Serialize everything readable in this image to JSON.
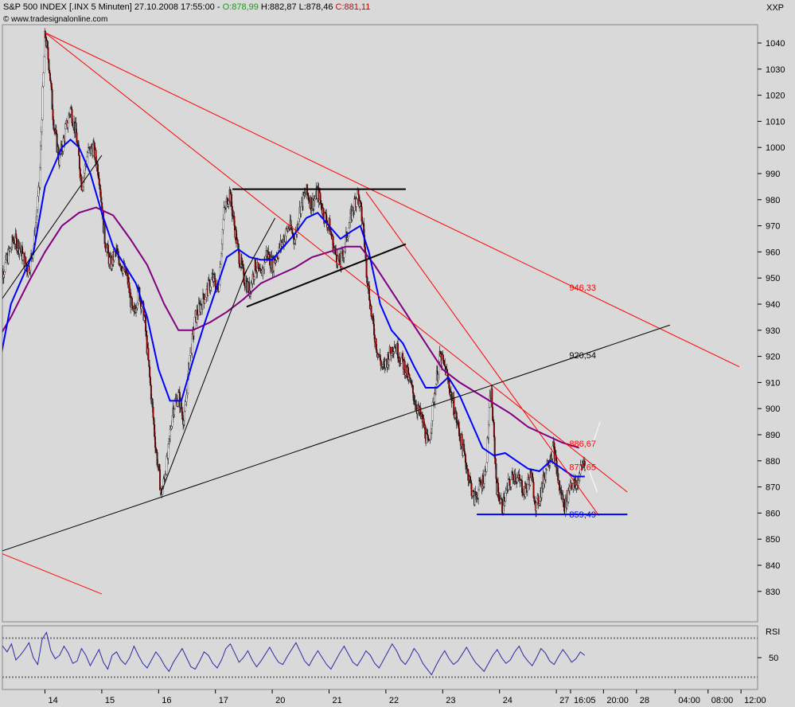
{
  "header": {
    "symbol": "S&P 500 INDEX [.INX  5 Minuten] 27.10.2008 17:55:00 - ",
    "open": "O:878,99",
    "high_low": " H:882,87 L:878,46 ",
    "close": "C:881,11",
    "source": "© www.tradesignalonline.com",
    "corner": "XXP"
  },
  "colors": {
    "background": "#d9d9d9",
    "candle_up": "#ffffff",
    "candle_down": "#8b0000",
    "ma_fast": "#0000ff",
    "ma_slow": "#800080",
    "trendline_red": "#ff0000",
    "trendline_black": "#000000",
    "support_blue": "#0000ff",
    "rsi": "#2a2aa8"
  },
  "chart_data": [
    {
      "type": "line",
      "panel": "price",
      "y_ticks": [
        1040,
        1030,
        1020,
        1010,
        1000,
        990,
        980,
        970,
        960,
        950,
        940,
        930,
        920,
        910,
        900,
        890,
        880,
        870,
        860,
        850,
        840,
        830
      ],
      "ylim": [
        827,
        1047
      ],
      "x_ticks": [
        "14",
        "15",
        "16",
        "17",
        "20",
        "21",
        "22",
        "23",
        "24",
        "27",
        "16:05",
        "20:00",
        "28",
        "04:00",
        "08:00",
        "12:00"
      ],
      "x_tick_pos": [
        0,
        1,
        2,
        3,
        4,
        5,
        6,
        7,
        8,
        9,
        9.25,
        9.83,
        10.41,
        11.09,
        11.67,
        12.25
      ],
      "xlim": [
        -0.85,
        12.6
      ],
      "price_path": [
        [
          -0.82,
          948
        ],
        [
          -0.7,
          955
        ],
        [
          -0.55,
          965
        ],
        [
          -0.45,
          962
        ],
        [
          -0.3,
          953
        ],
        [
          -0.2,
          962
        ],
        [
          -0.1,
          985
        ],
        [
          0.0,
          1044
        ],
        [
          0.08,
          1030
        ],
        [
          0.15,
          1010
        ],
        [
          0.25,
          995
        ],
        [
          0.35,
          1005
        ],
        [
          0.45,
          1015
        ],
        [
          0.55,
          1005
        ],
        [
          0.65,
          985
        ],
        [
          0.75,
          998
        ],
        [
          0.85,
          1000
        ],
        [
          0.95,
          990
        ],
        [
          1.05,
          965
        ],
        [
          1.15,
          955
        ],
        [
          1.25,
          960
        ],
        [
          1.35,
          955
        ],
        [
          1.45,
          950
        ],
        [
          1.55,
          935
        ],
        [
          1.65,
          945
        ],
        [
          1.75,
          935
        ],
        [
          1.85,
          910
        ],
        [
          1.95,
          885
        ],
        [
          2.05,
          867
        ],
        [
          2.15,
          880
        ],
        [
          2.25,
          900
        ],
        [
          2.35,
          905
        ],
        [
          2.45,
          895
        ],
        [
          2.55,
          920
        ],
        [
          2.65,
          935
        ],
        [
          2.75,
          940
        ],
        [
          2.85,
          945
        ],
        [
          2.95,
          950
        ],
        [
          3.05,
          945
        ],
        [
          3.15,
          975
        ],
        [
          3.25,
          983
        ],
        [
          3.3,
          975
        ],
        [
          3.4,
          960
        ],
        [
          3.5,
          950
        ],
        [
          3.6,
          945
        ],
        [
          3.7,
          955
        ],
        [
          3.8,
          950
        ],
        [
          3.9,
          960
        ],
        [
          4.0,
          955
        ],
        [
          4.1,
          960
        ],
        [
          4.2,
          965
        ],
        [
          4.3,
          970
        ],
        [
          4.4,
          965
        ],
        [
          4.5,
          978
        ],
        [
          4.6,
          983
        ],
        [
          4.7,
          978
        ],
        [
          4.8,
          983
        ],
        [
          4.9,
          975
        ],
        [
          5.0,
          970
        ],
        [
          5.1,
          960
        ],
        [
          5.2,
          955
        ],
        [
          5.3,
          965
        ],
        [
          5.4,
          975
        ],
        [
          5.5,
          983
        ],
        [
          5.6,
          970
        ],
        [
          5.65,
          955
        ],
        [
          5.75,
          935
        ],
        [
          5.85,
          922
        ],
        [
          5.95,
          915
        ],
        [
          6.05,
          920
        ],
        [
          6.15,
          925
        ],
        [
          6.25,
          920
        ],
        [
          6.35,
          915
        ],
        [
          6.45,
          908
        ],
        [
          6.55,
          900
        ],
        [
          6.65,
          895
        ],
        [
          6.75,
          885
        ],
        [
          6.85,
          905
        ],
        [
          6.95,
          920
        ],
        [
          7.05,
          915
        ],
        [
          7.15,
          905
        ],
        [
          7.25,
          895
        ],
        [
          7.35,
          885
        ],
        [
          7.45,
          875
        ],
        [
          7.55,
          865
        ],
        [
          7.65,
          870
        ],
        [
          7.75,
          875
        ],
        [
          7.85,
          908
        ],
        [
          7.95,
          870
        ],
        [
          8.05,
          862
        ],
        [
          8.15,
          870
        ],
        [
          8.25,
          875
        ],
        [
          8.35,
          872
        ],
        [
          8.45,
          868
        ],
        [
          8.55,
          875
        ],
        [
          8.65,
          862
        ],
        [
          8.75,
          870
        ],
        [
          8.85,
          880
        ],
        [
          8.95,
          885
        ],
        [
          9.05,
          870
        ],
        [
          9.15,
          862
        ],
        [
          9.25,
          872
        ],
        [
          9.35,
          870
        ],
        [
          9.45,
          878
        ],
        [
          9.5,
          881
        ]
      ],
      "ma_fast_path": [
        [
          -0.82,
          915
        ],
        [
          -0.6,
          940
        ],
        [
          -0.4,
          950
        ],
        [
          -0.2,
          960
        ],
        [
          0.0,
          985
        ],
        [
          0.3,
          1000
        ],
        [
          0.45,
          1003
        ],
        [
          0.6,
          1000
        ],
        [
          0.8,
          990
        ],
        [
          1.0,
          975
        ],
        [
          1.2,
          962
        ],
        [
          1.4,
          955
        ],
        [
          1.6,
          948
        ],
        [
          1.8,
          935
        ],
        [
          2.0,
          915
        ],
        [
          2.2,
          903
        ],
        [
          2.4,
          903
        ],
        [
          2.6,
          918
        ],
        [
          2.8,
          932
        ],
        [
          3.0,
          945
        ],
        [
          3.2,
          958
        ],
        [
          3.4,
          961
        ],
        [
          3.6,
          958
        ],
        [
          3.8,
          957
        ],
        [
          4.0,
          957
        ],
        [
          4.2,
          962
        ],
        [
          4.4,
          967
        ],
        [
          4.6,
          973
        ],
        [
          4.8,
          975
        ],
        [
          5.0,
          970
        ],
        [
          5.2,
          965
        ],
        [
          5.4,
          968
        ],
        [
          5.55,
          970
        ],
        [
          5.7,
          960
        ],
        [
          5.9,
          940
        ],
        [
          6.1,
          930
        ],
        [
          6.3,
          925
        ],
        [
          6.5,
          916
        ],
        [
          6.7,
          908
        ],
        [
          6.9,
          908
        ],
        [
          7.1,
          912
        ],
        [
          7.3,
          905
        ],
        [
          7.5,
          895
        ],
        [
          7.7,
          885
        ],
        [
          7.9,
          882
        ],
        [
          8.1,
          883
        ],
        [
          8.3,
          880
        ],
        [
          8.5,
          877
        ],
        [
          8.7,
          876
        ],
        [
          8.9,
          880
        ],
        [
          9.1,
          877
        ],
        [
          9.3,
          874
        ],
        [
          9.5,
          874
        ]
      ],
      "ma_slow_path": [
        [
          -0.82,
          927
        ],
        [
          -0.6,
          935
        ],
        [
          -0.3,
          948
        ],
        [
          0.0,
          960
        ],
        [
          0.3,
          970
        ],
        [
          0.6,
          975
        ],
        [
          0.9,
          977
        ],
        [
          1.2,
          974
        ],
        [
          1.5,
          965
        ],
        [
          1.8,
          955
        ],
        [
          2.1,
          940
        ],
        [
          2.35,
          930
        ],
        [
          2.6,
          930
        ],
        [
          2.9,
          933
        ],
        [
          3.2,
          937
        ],
        [
          3.5,
          942
        ],
        [
          3.8,
          948
        ],
        [
          4.1,
          951
        ],
        [
          4.4,
          954
        ],
        [
          4.7,
          958
        ],
        [
          5.0,
          960
        ],
        [
          5.3,
          962
        ],
        [
          5.55,
          962
        ],
        [
          5.8,
          955
        ],
        [
          6.1,
          945
        ],
        [
          6.4,
          935
        ],
        [
          6.7,
          925
        ],
        [
          7.0,
          915
        ],
        [
          7.3,
          910
        ],
        [
          7.6,
          906
        ],
        [
          7.9,
          902
        ],
        [
          8.2,
          898
        ],
        [
          8.5,
          893
        ],
        [
          8.8,
          890
        ],
        [
          9.1,
          887
        ],
        [
          9.4,
          885
        ]
      ],
      "lines": [
        {
          "color": "red",
          "x1": 0.0,
          "y1": 1044,
          "x2": 12.22,
          "y2": 916
        },
        {
          "color": "red",
          "x1": 0.0,
          "y1": 1044,
          "x2": 10.25,
          "y2": 868
        },
        {
          "color": "red",
          "x1": 5.65,
          "y1": 983,
          "x2": 9.75,
          "y2": 859
        },
        {
          "color": "red",
          "x1": -0.82,
          "y1": 845,
          "x2": 1.0,
          "y2": 829
        },
        {
          "color": "black",
          "x1": -0.82,
          "y1": 845,
          "x2": 11.0,
          "y2": 932
        },
        {
          "color": "black",
          "x1": -0.82,
          "y1": 940,
          "x2": 1.0,
          "y2": 997
        },
        {
          "color": "black",
          "x1": 2.03,
          "y1": 867,
          "x2": 3.55,
          "y2": 953
        },
        {
          "color": "black",
          "x1": 3.5,
          "y1": 951,
          "x2": 4.05,
          "y2": 973
        },
        {
          "color": "black",
          "x1": 3.3,
          "y1": 984,
          "x2": 6.35,
          "y2": 984,
          "bold": true
        },
        {
          "color": "black",
          "x1": 3.55,
          "y1": 939,
          "x2": 6.35,
          "y2": 963,
          "bold": true
        },
        {
          "color": "blue",
          "x1": 7.6,
          "y1": 859.49,
          "x2": 10.25,
          "y2": 859.49,
          "bold": true
        },
        {
          "color": "white",
          "x1": 9.65,
          "y1": 887,
          "x2": 9.77,
          "y2": 895
        },
        {
          "color": "white",
          "x1": 9.55,
          "y1": 878,
          "x2": 9.72,
          "y2": 868
        }
      ],
      "levels": [
        {
          "label": "946,33",
          "value": 946.33,
          "color": "red",
          "x": 9.2
        },
        {
          "label": "920,54",
          "value": 920.54,
          "color": "black",
          "x": 9.2
        },
        {
          "label": "886,67",
          "value": 886.67,
          "color": "red",
          "x": 9.2
        },
        {
          "label": "877,65",
          "value": 877.65,
          "color": "red",
          "x": 9.2
        },
        {
          "label": "859,49",
          "value": 859.49,
          "color": "blue",
          "x": 9.2
        }
      ]
    },
    {
      "type": "line",
      "panel": "rsi",
      "title": "RSI",
      "y_ticks": [
        50
      ],
      "ylim": [
        25,
        75
      ],
      "bands": [
        67,
        33
      ],
      "series": [
        {
          "values": [
            58,
            60,
            55,
            62,
            48,
            52,
            57,
            63,
            50,
            44,
            66,
            72,
            56,
            49,
            52,
            60,
            54,
            45,
            47,
            58,
            52,
            43,
            50,
            57,
            46,
            40,
            52,
            55,
            48,
            44,
            50,
            60,
            52,
            45,
            41,
            48,
            55,
            50,
            43,
            38,
            46,
            52,
            58,
            50,
            42,
            40,
            47,
            55,
            52,
            45,
            41,
            48,
            58,
            62,
            54,
            46,
            50,
            56,
            48,
            42,
            47,
            53,
            59,
            52,
            46,
            44,
            51,
            57,
            63,
            55,
            47,
            43,
            50,
            56,
            50,
            44,
            40,
            47,
            54,
            60,
            53,
            46,
            43,
            49,
            56,
            52,
            45,
            41,
            48,
            55,
            62,
            56,
            48,
            44,
            50,
            58,
            53,
            45,
            40,
            35,
            43,
            50,
            56,
            49,
            44,
            47,
            53,
            59,
            52,
            46,
            42,
            38,
            45,
            52,
            57,
            50,
            45,
            48,
            55,
            60,
            52,
            47,
            43,
            50,
            58,
            54,
            47,
            44,
            51,
            57,
            52,
            46,
            49,
            55,
            52
          ]
        }
      ]
    }
  ]
}
